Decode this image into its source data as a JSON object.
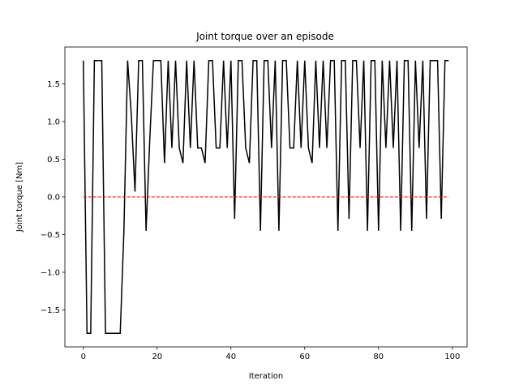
{
  "chart_data": {
    "type": "line",
    "title": "Joint torque over an episode",
    "xlabel": "Iteration",
    "ylabel": "Joint torque [Nm]",
    "xlim": [
      -5,
      104
    ],
    "ylim": [
      -1.99,
      1.99
    ],
    "xticks": [
      0,
      20,
      40,
      60,
      80,
      100
    ],
    "yticks": [
      -1.5,
      -1.0,
      -0.5,
      0.0,
      0.5,
      1.0,
      1.5
    ],
    "xtick_labels": [
      "0",
      "20",
      "40",
      "60",
      "80",
      "100"
    ],
    "ytick_labels": [
      "−1.5",
      "−1.0",
      "−0.5",
      "0.0",
      "0.5",
      "1.0",
      "1.5"
    ],
    "grid": false,
    "series": [
      {
        "color": "#000000",
        "style": "solid",
        "x": [
          0,
          1,
          2,
          3,
          4,
          5,
          6,
          7,
          8,
          9,
          10,
          11,
          12,
          13,
          14,
          15,
          16,
          17,
          18,
          19,
          20,
          21,
          22,
          23,
          24,
          25,
          26,
          27,
          28,
          29,
          30,
          31,
          32,
          33,
          34,
          35,
          36,
          37,
          38,
          39,
          40,
          41,
          42,
          43,
          44,
          45,
          46,
          47,
          48,
          49,
          50,
          51,
          52,
          53,
          54,
          55,
          56,
          57,
          58,
          59,
          60,
          61,
          62,
          63,
          64,
          65,
          66,
          67,
          68,
          69,
          70,
          71,
          72,
          73,
          74,
          75,
          76,
          77,
          78,
          79,
          80,
          81,
          82,
          83,
          84,
          85,
          86,
          87,
          88,
          89,
          90,
          91,
          92,
          93,
          94,
          95,
          96,
          97,
          98,
          99
        ],
        "y": [
          1.81,
          -1.81,
          -1.81,
          1.81,
          1.81,
          1.81,
          -1.81,
          -1.81,
          -1.81,
          -1.81,
          -1.81,
          -0.45,
          1.81,
          1.09,
          0.07,
          1.81,
          1.81,
          -0.45,
          0.75,
          1.81,
          1.81,
          1.81,
          0.45,
          1.81,
          0.65,
          1.81,
          0.65,
          0.45,
          1.81,
          0.65,
          1.81,
          0.65,
          0.65,
          0.45,
          1.81,
          1.81,
          0.65,
          0.65,
          1.81,
          0.65,
          1.81,
          -0.29,
          1.81,
          1.81,
          0.65,
          0.45,
          1.81,
          1.81,
          -0.45,
          1.81,
          1.81,
          0.65,
          1.81,
          -0.45,
          1.81,
          1.81,
          0.65,
          0.65,
          1.81,
          0.65,
          1.81,
          0.65,
          0.45,
          1.81,
          0.65,
          1.81,
          0.65,
          1.81,
          1.81,
          -0.45,
          1.81,
          1.81,
          -0.29,
          1.81,
          1.81,
          0.65,
          1.81,
          -0.45,
          1.81,
          1.81,
          -0.45,
          1.81,
          0.65,
          1.81,
          0.65,
          1.81,
          -0.45,
          1.81,
          1.81,
          -0.45,
          1.81,
          0.65,
          1.81,
          -0.29,
          1.81,
          1.81,
          1.81,
          -0.29,
          1.81,
          1.81
        ]
      },
      {
        "color": "#ff0000",
        "style": "dashed",
        "x": [
          0,
          99
        ],
        "y": [
          0.0,
          0.0
        ]
      }
    ]
  }
}
